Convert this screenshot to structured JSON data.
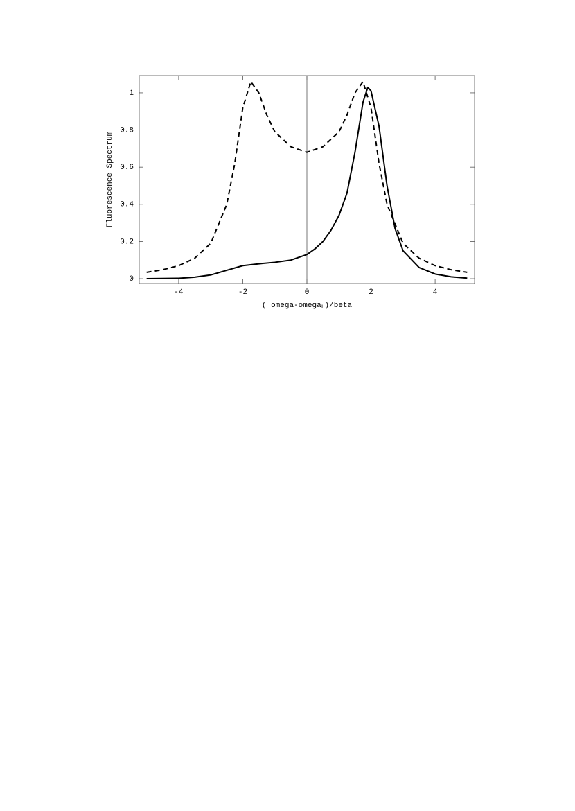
{
  "chart_data": {
    "type": "line",
    "ylabel": "Fluorescence Spectrum",
    "xlabel_parts": [
      "( omega-omega",
      "L",
      ")/beta"
    ],
    "xlim": [
      -5.23,
      5.23
    ],
    "ylim": [
      -0.026,
      1.093
    ],
    "xticks": [
      -4,
      -2,
      0,
      2,
      4
    ],
    "yticks": [
      0,
      0.2,
      0.4,
      0.6,
      0.8,
      1
    ],
    "zero_line": true,
    "series": [
      {
        "color": "#000000",
        "style": "solid",
        "x": [
          -5,
          -4,
          -3.5,
          -3,
          -2.5,
          -2,
          -1.5,
          -1,
          -0.5,
          0,
          0.25,
          0.5,
          0.75,
          1,
          1.25,
          1.5,
          1.75,
          1.9,
          2,
          2.25,
          2.5,
          2.75,
          3,
          3.5,
          4,
          4.5,
          5
        ],
        "values": [
          0.0,
          0.002,
          0.008,
          0.02,
          0.045,
          0.07,
          0.08,
          0.088,
          0.1,
          0.13,
          0.16,
          0.2,
          0.26,
          0.34,
          0.46,
          0.68,
          0.95,
          1.03,
          1.01,
          0.82,
          0.5,
          0.27,
          0.15,
          0.06,
          0.025,
          0.01,
          0.003
        ]
      },
      {
        "color": "#000000",
        "style": "dashed",
        "x": [
          -5,
          -4.5,
          -4,
          -3.5,
          -3,
          -2.5,
          -2.25,
          -2,
          -1.75,
          -1.5,
          -1.25,
          -1,
          -0.5,
          0,
          0.5,
          1,
          1.25,
          1.5,
          1.75,
          2,
          2.25,
          2.5,
          3,
          3.5,
          4,
          4.5,
          5
        ],
        "values": [
          0.034,
          0.048,
          0.07,
          0.11,
          0.19,
          0.4,
          0.62,
          0.92,
          1.06,
          1.0,
          0.88,
          0.79,
          0.71,
          0.68,
          0.71,
          0.79,
          0.88,
          1.0,
          1.06,
          0.92,
          0.62,
          0.4,
          0.19,
          0.11,
          0.07,
          0.048,
          0.034
        ]
      }
    ]
  }
}
